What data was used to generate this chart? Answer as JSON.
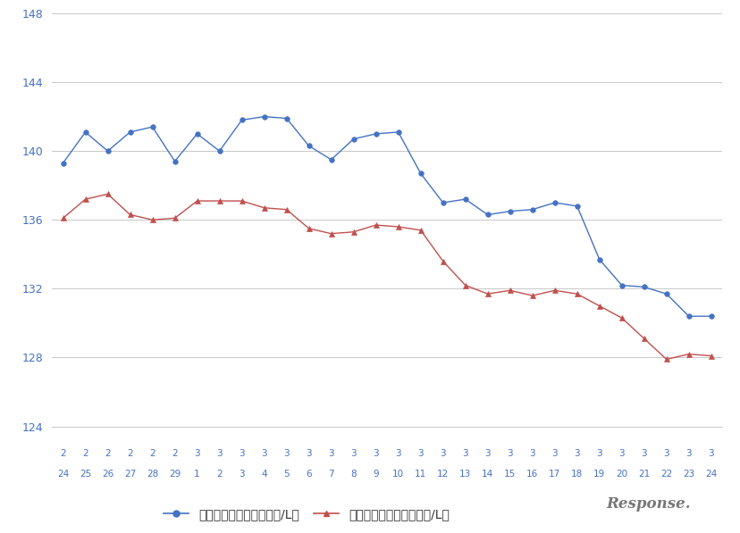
{
  "x_labels_top": [
    "2",
    "2",
    "2",
    "2",
    "2",
    "2",
    "3",
    "3",
    "3",
    "3",
    "3",
    "3",
    "3",
    "3",
    "3",
    "3",
    "3",
    "3",
    "3",
    "3",
    "3",
    "3",
    "3",
    "3",
    "3",
    "3",
    "3",
    "3",
    "3",
    "3"
  ],
  "x_labels_bottom": [
    "24",
    "25",
    "26",
    "27",
    "28",
    "29",
    "1",
    "2",
    "3",
    "4",
    "5",
    "6",
    "7",
    "8",
    "9",
    "10",
    "11",
    "12",
    "13",
    "14",
    "15",
    "16",
    "17",
    "18",
    "19",
    "20",
    "21",
    "22",
    "23",
    "24"
  ],
  "blue_values": [
    139.3,
    141.1,
    140.0,
    141.1,
    141.4,
    139.4,
    141.0,
    140.0,
    141.8,
    142.0,
    141.9,
    140.3,
    139.5,
    140.7,
    141.0,
    141.1,
    138.7,
    137.0,
    137.2,
    136.3,
    136.5,
    136.6,
    137.0,
    136.8,
    133.7,
    132.2,
    132.1,
    131.7,
    130.4,
    130.4
  ],
  "red_values": [
    136.1,
    137.2,
    137.5,
    136.3,
    136.0,
    136.1,
    137.1,
    137.1,
    137.1,
    136.7,
    136.6,
    135.5,
    135.2,
    135.3,
    135.7,
    135.6,
    135.4,
    133.6,
    132.2,
    131.7,
    131.9,
    131.6,
    131.9,
    131.7,
    131.0,
    130.3,
    129.1,
    127.9,
    128.2,
    128.1
  ],
  "ylim": [
    124,
    148
  ],
  "yticks": [
    124,
    128,
    132,
    136,
    140,
    144,
    148
  ],
  "blue_color": "#4472C4",
  "red_color": "#C0504D",
  "blue_label": "レギュラー看板価格（円/L）",
  "red_label": "レギュラー実売価格（円/L）",
  "grid_color": "#C8C8C8",
  "axis_color": "#4472C4",
  "tick_color": "#4472C4",
  "bg_color": "#FFFFFF",
  "legend_marker_blue": "o",
  "legend_marker_red": "^"
}
